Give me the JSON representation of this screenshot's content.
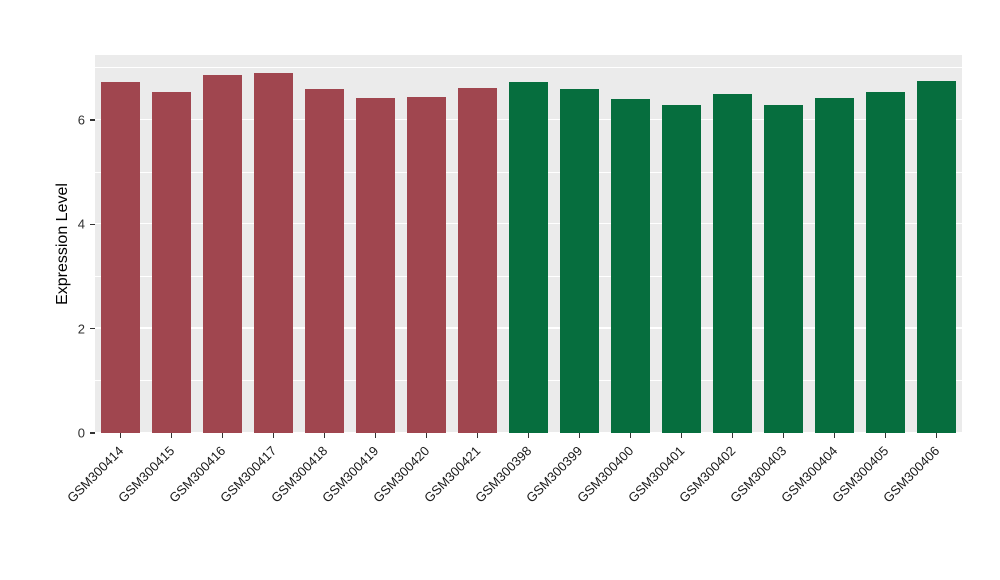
{
  "chart_data": {
    "type": "bar",
    "title": "",
    "xlabel": "",
    "ylabel": "Expression Level",
    "ylim": [
      0,
      7.25
    ],
    "yticks": [
      0,
      2,
      4,
      6
    ],
    "minor_gridlines": [
      1,
      3,
      5,
      7
    ],
    "grid": "on",
    "legend": "none",
    "panel_bg": "#EBEBEB",
    "gridline_color": "#FFFFFF",
    "group_split_index": 8,
    "colors": {
      "group1": "#A0464F",
      "group2": "#066E3E"
    },
    "categories": [
      "GSM300414",
      "GSM300415",
      "GSM300416",
      "GSM300417",
      "GSM300418",
      "GSM300419",
      "GSM300420",
      "GSM300421",
      "GSM300398",
      "GSM300399",
      "GSM300400",
      "GSM300401",
      "GSM300402",
      "GSM300403",
      "GSM300404",
      "GSM300405",
      "GSM300406"
    ],
    "values": [
      6.73,
      6.55,
      6.87,
      6.9,
      6.6,
      6.42,
      6.45,
      6.62,
      6.73,
      6.6,
      6.4,
      6.3,
      6.5,
      6.3,
      6.43,
      6.55,
      6.75
    ]
  }
}
